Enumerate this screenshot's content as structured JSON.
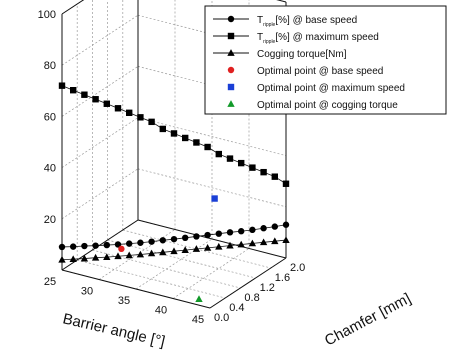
{
  "chart_data": {
    "type": "scatter",
    "projection": "3d",
    "axes": {
      "z": {
        "ticks": [
          "20",
          "40",
          "60",
          "80",
          "100"
        ],
        "range": [
          0,
          100
        ]
      },
      "x": {
        "label": "Barrier angle [°]",
        "ticks": [
          "25",
          "30",
          "35",
          "40",
          "45"
        ],
        "range": [
          25,
          45
        ]
      },
      "y": {
        "label": "Chamfer [mm]",
        "ticks": [
          "0.0",
          "0.4",
          "0.8",
          "1.2",
          "1.6",
          "2.0"
        ],
        "range": [
          0,
          2.0
        ]
      }
    },
    "grid": true,
    "legend": {
      "placement": "top-right",
      "entries": [
        {
          "main": "T",
          "sub": "ripple",
          "rest": "[%] @ base speed",
          "marker": "circle",
          "color": "#000000",
          "line": true
        },
        {
          "main": "T",
          "sub": "ripple",
          "rest": "[%] @ maximum  speed",
          "marker": "square",
          "color": "#000000",
          "line": true
        },
        {
          "main": "Cogging torque[Nm]",
          "sub": "",
          "rest": "",
          "marker": "triangle",
          "color": "#000000",
          "line": true
        },
        {
          "main": "Optimal point @ base speed",
          "sub": "",
          "rest": "",
          "marker": "circle",
          "color": "#e02020",
          "line": false
        },
        {
          "main": "Optimal point @ maximum speed",
          "sub": "",
          "rest": "",
          "marker": "square",
          "color": "#1a3fd6",
          "line": false
        },
        {
          "main": "Optimal point @ cogging torque",
          "sub": "",
          "rest": "",
          "marker": "triangle",
          "color": "#129a2a",
          "line": false
        }
      ]
    },
    "series": [
      {
        "marker": "circle",
        "color": "#000000",
        "x": [
          25,
          26,
          27,
          28,
          29,
          30,
          31,
          32,
          33,
          34,
          35,
          36,
          37,
          38,
          39,
          40,
          41,
          42,
          43,
          44,
          45
        ],
        "y": [
          0.0,
          0.1,
          0.2,
          0.3,
          0.4,
          0.5,
          0.6,
          0.7,
          0.8,
          0.9,
          1.0,
          1.1,
          1.2,
          1.3,
          1.4,
          1.5,
          1.6,
          1.7,
          1.8,
          1.9,
          2.0
        ],
        "z": [
          9.0,
          8.9,
          8.9,
          8.8,
          8.8,
          8.8,
          8.9,
          9.0,
          9.2,
          9.5,
          9.7,
          10.0,
          10.3,
          10.6,
          10.9,
          11.2,
          11.4,
          11.7,
          12.1,
          12.5,
          13.0
        ]
      },
      {
        "marker": "square",
        "color": "#000000",
        "x": [
          25,
          26,
          27,
          28,
          29,
          30,
          31,
          32,
          33,
          34,
          35,
          36,
          37,
          38,
          39,
          40,
          41,
          42,
          43,
          44,
          45
        ],
        "y": [
          0.0,
          0.1,
          0.2,
          0.3,
          0.4,
          0.5,
          0.6,
          0.7,
          0.8,
          0.9,
          1.0,
          1.1,
          1.2,
          1.3,
          1.4,
          1.5,
          1.6,
          1.7,
          1.8,
          1.9,
          2.0
        ],
        "z": [
          72.0,
          70.0,
          68.0,
          66.0,
          64.0,
          62.0,
          60.0,
          58.0,
          56.0,
          53.0,
          51.0,
          49.0,
          47.0,
          45.0,
          42.0,
          40.0,
          38.0,
          36.0,
          34.0,
          32.0,
          29.0
        ]
      },
      {
        "marker": "triangle",
        "color": "#000000",
        "x": [
          25,
          26,
          27,
          28,
          29,
          30,
          31,
          32,
          33,
          34,
          35,
          36,
          37,
          38,
          39,
          40,
          41,
          42,
          43,
          44,
          45
        ],
        "y": [
          0.0,
          0.1,
          0.2,
          0.3,
          0.4,
          0.5,
          0.6,
          0.7,
          0.8,
          0.9,
          1.0,
          1.1,
          1.2,
          1.3,
          1.4,
          1.5,
          1.6,
          1.7,
          1.8,
          1.9,
          2.0
        ],
        "z": [
          4.0,
          4.0,
          4.0,
          4.1,
          4.1,
          4.2,
          4.3,
          4.4,
          4.6,
          4.8,
          5.0,
          5.2,
          5.4,
          5.6,
          5.8,
          6.0,
          6.2,
          6.4,
          6.6,
          6.8,
          7.0
        ]
      }
    ],
    "optimal_points": [
      {
        "marker": "circle",
        "color": "#e02020",
        "x": 32,
        "y": 0.2,
        "z": 11.5
      },
      {
        "marker": "square",
        "color": "#1a3fd6",
        "x": 41,
        "y": 0.9,
        "z": 31.0
      },
      {
        "marker": "triangle",
        "color": "#129a2a",
        "x": 43,
        "y": 0.1,
        "z": 1.0
      }
    ]
  }
}
